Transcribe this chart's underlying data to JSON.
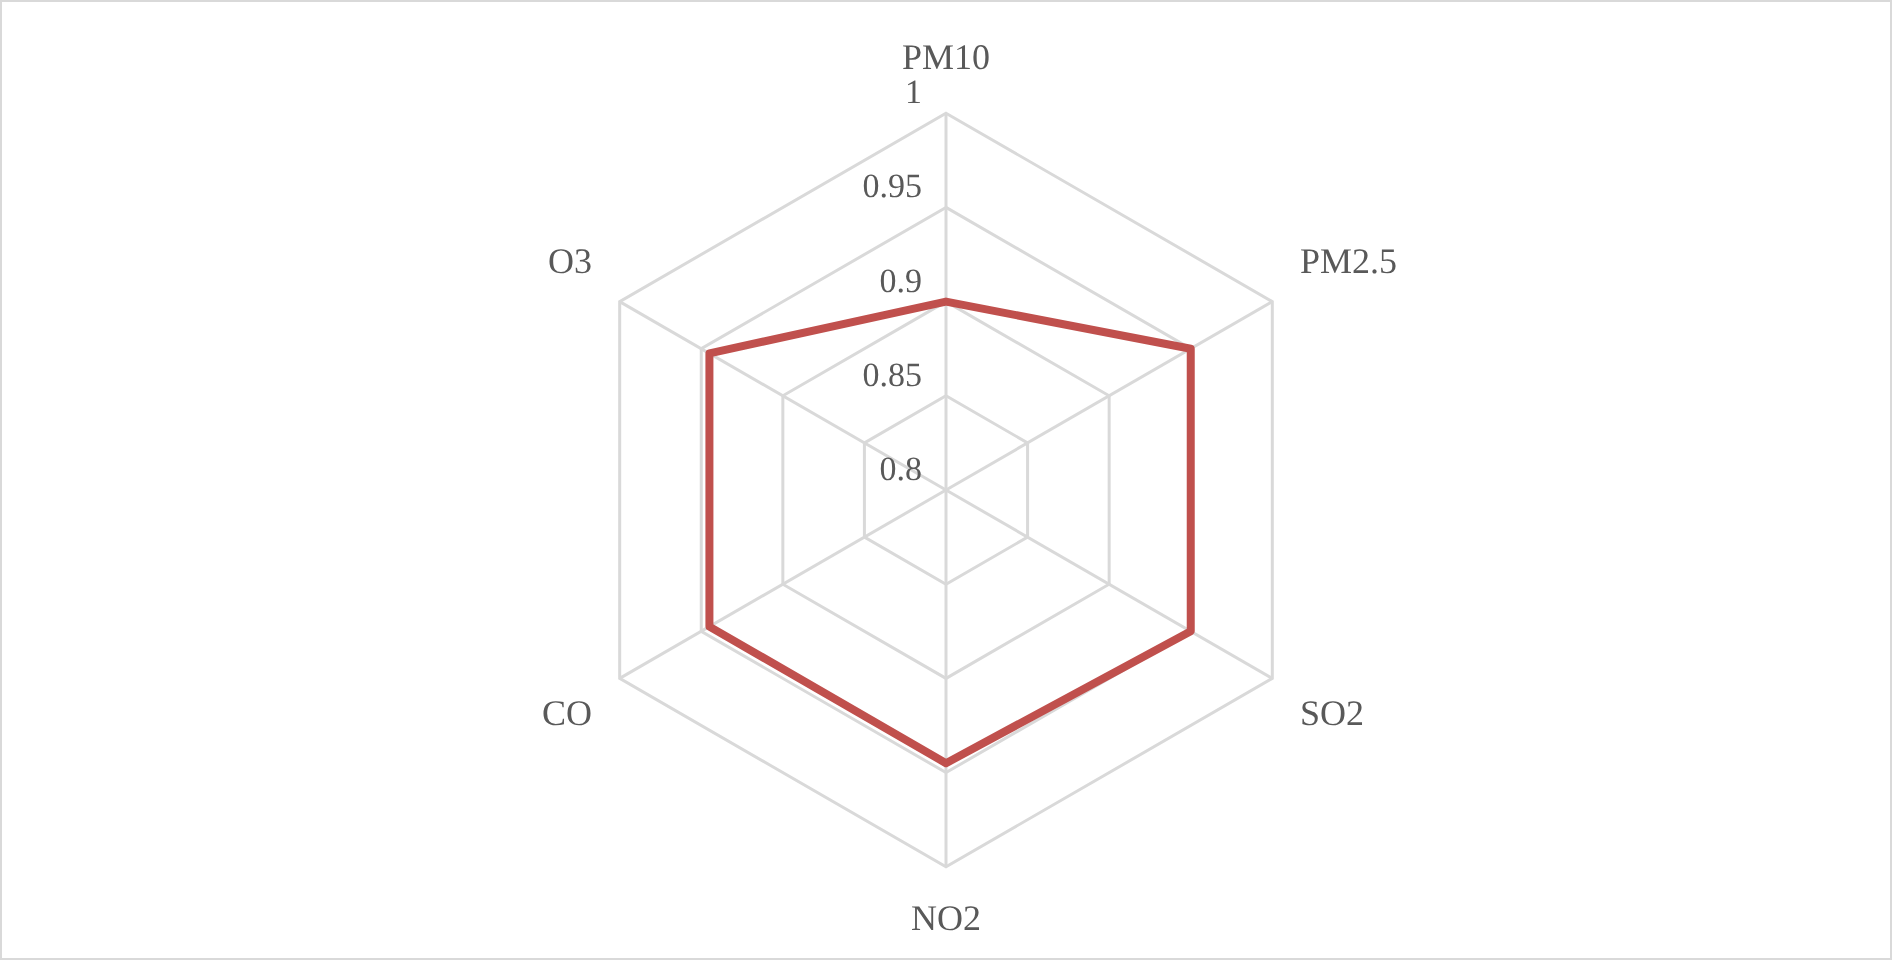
{
  "chart_data": {
    "type": "radar",
    "categories": [
      "PM10",
      "PM2.5",
      "SO2",
      "NO2",
      "CO",
      "O3"
    ],
    "series": [
      {
        "color": "#c0504d",
        "values": [
          0.9,
          0.95,
          0.95,
          0.945,
          0.945,
          0.945
        ]
      }
    ],
    "ylim": [
      0.8,
      1
    ],
    "yticks": [
      0.8,
      0.85,
      0.9,
      0.95,
      1
    ],
    "grid": true,
    "legend": false,
    "marker": "none"
  }
}
